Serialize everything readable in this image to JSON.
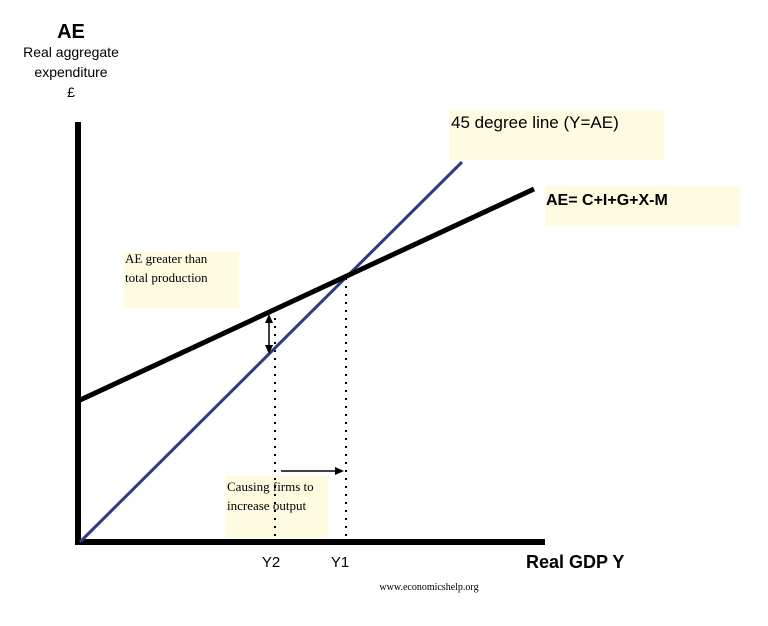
{
  "y_axis": {
    "title": "AE",
    "subtitle_lines": [
      "Real aggregate",
      "expenditure",
      "£"
    ]
  },
  "x_axis": {
    "title": "Real GDP Y",
    "ticks": [
      "Y2",
      "Y1"
    ]
  },
  "lines": {
    "forty_five": {
      "label": "45 degree line (Y=AE)",
      "color": "#2e3a87"
    },
    "ae": {
      "label": "AE= C+I+G+X-M",
      "color": "#000000"
    }
  },
  "annotations": {
    "gap_lines": [
      "AE greater than",
      "total production"
    ],
    "arrow_lines": [
      "Causing firms to",
      "increase output"
    ]
  },
  "highlight_color": "#fffbe0",
  "source": "www.economicshelp.org"
}
